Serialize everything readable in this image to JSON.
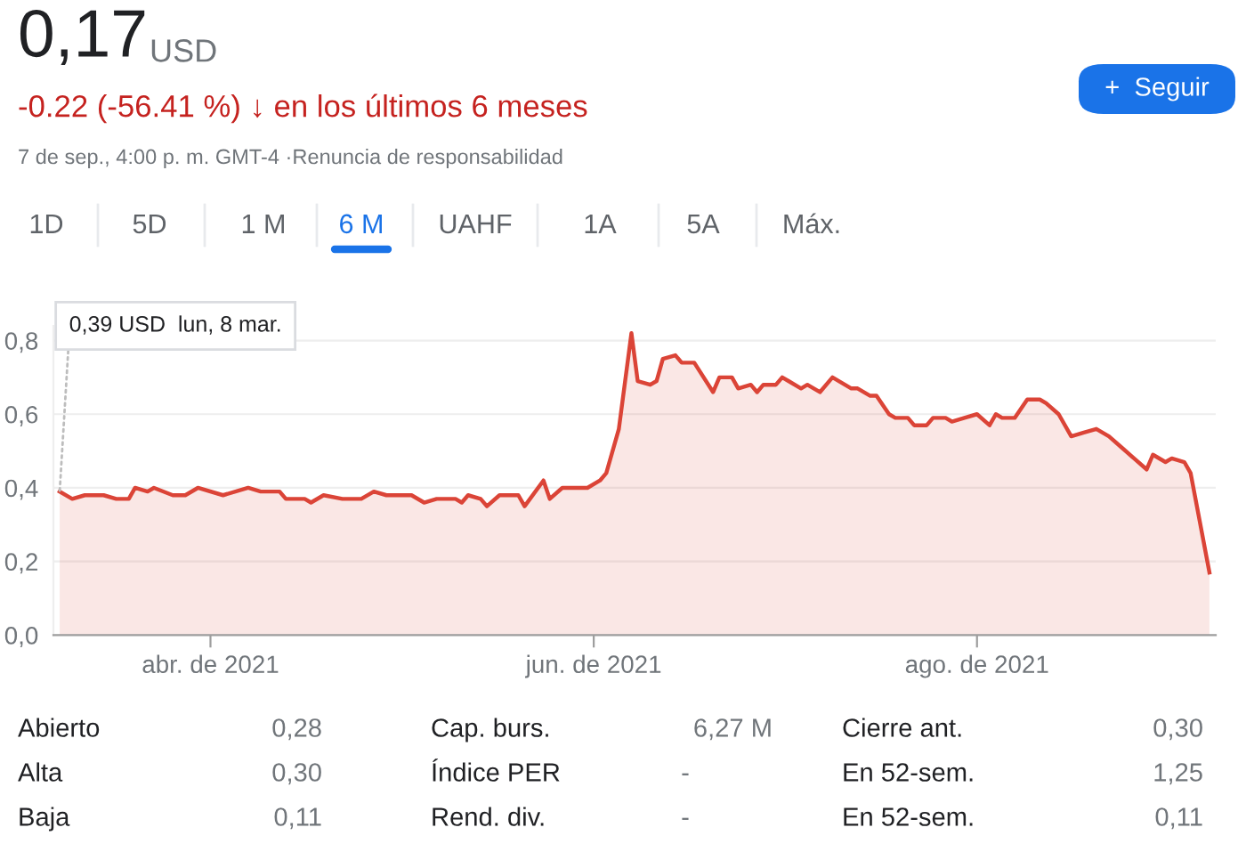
{
  "chart_data": {
    "type": "area",
    "title": "0,17",
    "x": [
      "2021-03-08",
      "2021-03-10",
      "2021-03-12",
      "2021-03-15",
      "2021-03-17",
      "2021-03-19",
      "2021-03-20",
      "2021-03-22",
      "2021-03-23",
      "2021-03-26",
      "2021-03-28",
      "2021-03-30",
      "2021-04-03",
      "2021-04-07",
      "2021-04-09",
      "2021-04-12",
      "2021-04-13",
      "2021-04-16",
      "2021-04-17",
      "2021-04-19",
      "2021-04-22",
      "2021-04-25",
      "2021-04-27",
      "2021-04-29",
      "2021-05-03",
      "2021-05-05",
      "2021-05-07",
      "2021-05-10",
      "2021-05-11",
      "2021-05-12",
      "2021-05-14",
      "2021-05-15",
      "2021-05-17",
      "2021-05-20",
      "2021-05-21",
      "2021-05-24",
      "2021-05-25",
      "2021-05-27",
      "2021-05-31",
      "2021-06-02",
      "2021-06-03",
      "2021-06-05",
      "2021-06-07",
      "2021-06-08",
      "2021-06-10",
      "2021-06-11",
      "2021-06-12",
      "2021-06-14",
      "2021-06-15",
      "2021-06-17",
      "2021-06-20",
      "2021-06-21",
      "2021-06-23",
      "2021-06-24",
      "2021-06-26",
      "2021-06-27",
      "2021-06-28",
      "2021-06-30",
      "2021-07-01",
      "2021-07-02",
      "2021-07-04",
      "2021-07-05",
      "2021-07-07",
      "2021-07-09",
      "2021-07-12",
      "2021-07-13",
      "2021-07-15",
      "2021-07-16",
      "2021-07-18",
      "2021-07-19",
      "2021-07-21",
      "2021-07-22",
      "2021-07-24",
      "2021-07-25",
      "2021-07-27",
      "2021-07-28",
      "2021-07-30",
      "2021-08-01",
      "2021-08-03",
      "2021-08-04",
      "2021-08-05",
      "2021-08-07",
      "2021-08-09",
      "2021-08-11",
      "2021-08-12",
      "2021-08-14",
      "2021-08-16",
      "2021-08-18",
      "2021-08-20",
      "2021-08-22",
      "2021-08-24",
      "2021-08-26",
      "2021-08-28",
      "2021-08-29",
      "2021-08-31",
      "2021-09-01",
      "2021-09-03",
      "2021-09-04",
      "2021-09-07"
    ],
    "series": [
      {
        "color": "#db4437",
        "values": [
          0.39,
          0.37,
          0.38,
          0.38,
          0.37,
          0.37,
          0.4,
          0.39,
          0.4,
          0.38,
          0.38,
          0.4,
          0.38,
          0.4,
          0.39,
          0.39,
          0.37,
          0.37,
          0.36,
          0.38,
          0.37,
          0.37,
          0.39,
          0.38,
          0.38,
          0.36,
          0.37,
          0.37,
          0.36,
          0.38,
          0.37,
          0.35,
          0.38,
          0.38,
          0.35,
          0.42,
          0.37,
          0.4,
          0.4,
          0.42,
          0.44,
          0.56,
          0.82,
          0.69,
          0.68,
          0.69,
          0.75,
          0.76,
          0.74,
          0.74,
          0.66,
          0.7,
          0.7,
          0.67,
          0.68,
          0.66,
          0.68,
          0.68,
          0.7,
          0.69,
          0.67,
          0.68,
          0.66,
          0.7,
          0.67,
          0.67,
          0.65,
          0.65,
          0.6,
          0.59,
          0.59,
          0.57,
          0.57,
          0.59,
          0.59,
          0.58,
          0.59,
          0.6,
          0.57,
          0.6,
          0.59,
          0.59,
          0.64,
          0.64,
          0.63,
          0.6,
          0.54,
          0.55,
          0.56,
          0.54,
          0.51,
          0.48,
          0.45,
          0.49,
          0.47,
          0.48,
          0.47,
          0.44,
          0.17
        ]
      }
    ],
    "xlim": [
      "2021-03-07",
      "2021-09-08"
    ],
    "xticks": [
      {
        "value": "2021-04-01",
        "label": "abr. de 2021"
      },
      {
        "value": "2021-06-01",
        "label": "jun. de 2021"
      },
      {
        "value": "2021-08-01",
        "label": "ago. de 2021"
      }
    ],
    "ylim": [
      0,
      0.84
    ],
    "yticks": [
      {
        "value": 0,
        "label": "0,0"
      },
      {
        "value": 0.2,
        "label": "0,2"
      },
      {
        "value": 0.4,
        "label": "0,4"
      },
      {
        "value": 0.6,
        "label": "0,6"
      },
      {
        "value": 0.8,
        "label": "0,8"
      }
    ],
    "grid": "y",
    "annotations": [
      "USD",
      "-0.22 (-56.41 %) ↓ en los últimos 6 meses",
      "7 de sep., 4:00 p. m. GMT-4 ·Renuncia de responsabilidad",
      "+  Seguir",
      "1D",
      "5D",
      "1 M",
      "6 M",
      "UAHF",
      "1A",
      "5A",
      "Máx.",
      "Abierto",
      "0,28",
      "Cap. burs.",
      "6,27 M",
      "Cierre ant.",
      "0,30",
      "Alta",
      "0,30",
      "Índice PER",
      "-",
      "En 52-sem.",
      "1,25",
      "Baja",
      "0,11",
      "Rend. div.",
      "-",
      "En 52-sem.",
      "0,11",
      {
        "text": "0,39 USD  lun, 8 mar.",
        "x": "2021-03-08",
        "y": 0.39
      }
    ]
  }
}
